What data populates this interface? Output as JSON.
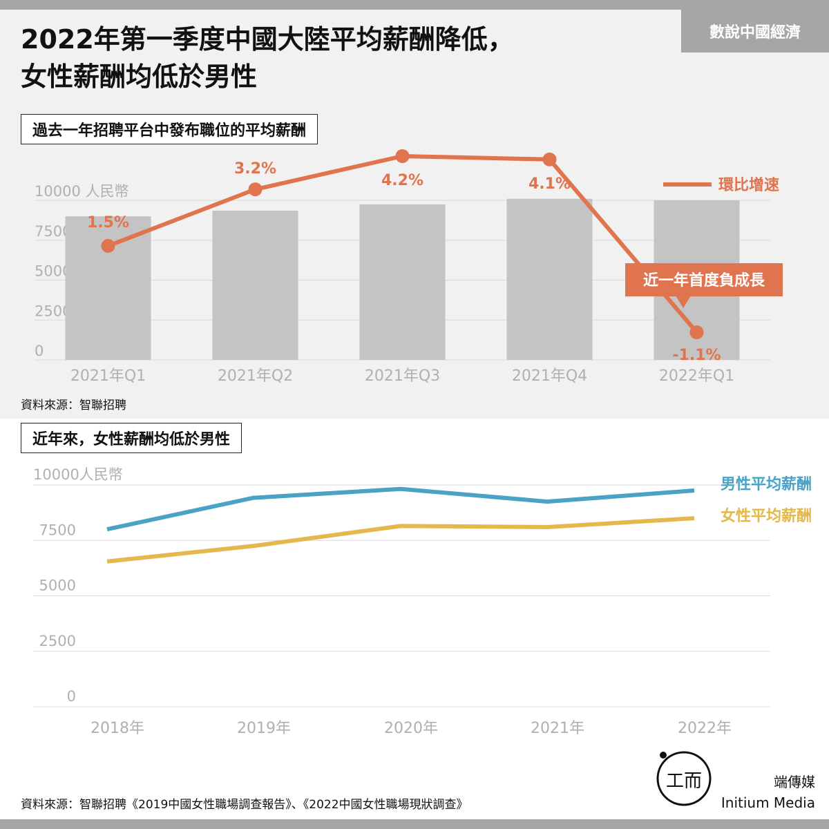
{
  "header": {
    "title_line1": "2022年第一季度中國大陸平均薪酬降低，",
    "title_line2": "女性薪酬均低於男性",
    "tag": "數說中國經濟"
  },
  "colors": {
    "bar": "#c4c4c4",
    "growth": "#e0744e",
    "male": "#4aa3c4",
    "female": "#e3b84c",
    "axis_text": "#b0b0b0",
    "grid": "#d9d9d9"
  },
  "chart_data": [
    {
      "type": "bar",
      "title": "過去一年招聘平台中發布職位的平均薪酬",
      "ylabel": "人民幣",
      "ylim": [
        0,
        10000
      ],
      "yticks": [
        "0",
        "2500",
        "5000",
        "7500",
        "10000"
      ],
      "categories": [
        "2021年Q1",
        "2021年Q2",
        "2021年Q3",
        "2021年Q4",
        "2022年Q1"
      ],
      "values": [
        9000,
        9350,
        9750,
        10100,
        10000
      ],
      "overlay": {
        "type": "line",
        "name": "環比增速",
        "values": [
          1.5,
          3.2,
          4.2,
          4.1,
          -1.1
        ],
        "labels": [
          "1.5%",
          "3.2%",
          "4.2%",
          "4.1%",
          "-1.1%"
        ]
      },
      "annotation": "近一年首度負成長",
      "source": "資料來源：智聯招聘"
    },
    {
      "type": "line",
      "title": "近年來，女性薪酬均低於男性",
      "ylabel": "人民幣",
      "ylim": [
        0,
        10000
      ],
      "yticks": [
        "0",
        "2500",
        "5000",
        "7500",
        "10000"
      ],
      "x": [
        "2018年",
        "2019年",
        "2020年",
        "2021年",
        "2022年"
      ],
      "series": [
        {
          "name": "男性平均薪酬",
          "values": [
            8000,
            9420,
            9820,
            9250,
            9750
          ]
        },
        {
          "name": "女性平均薪酬",
          "values": [
            6550,
            7250,
            8150,
            8100,
            8500
          ]
        }
      ],
      "source": "資料來源：智聯招聘《2019中國女性職場調查報告》、《2022中國女性職場現狀調查》"
    }
  ],
  "footer": {
    "brand_cn": "端傳媒",
    "brand_en": "Initium Media"
  }
}
